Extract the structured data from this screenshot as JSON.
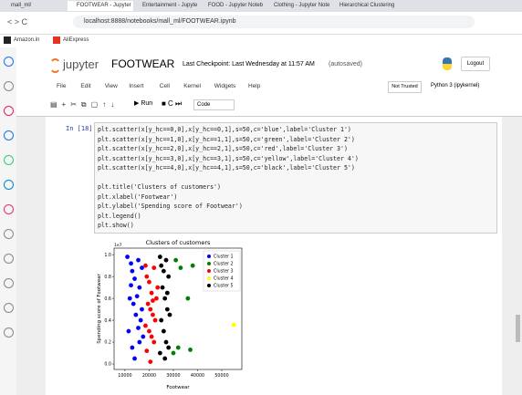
{
  "browser": {
    "tabs": [
      "mall_ml/",
      "FOOTWEAR - Jupyter N",
      "Entertainment - Jupyte",
      "FOOD - Jupyter Noteb",
      "Clothing - Jupyter Note",
      "Hierarchical Clustering"
    ],
    "url": "localhost:8888/notebooks/mall_ml/FOOTWEAR.ipynb",
    "bookmarks": [
      "Amazon.in",
      "AliExpress"
    ]
  },
  "notebook": {
    "logo": "jupyter",
    "name": "FOOTWEAR",
    "checkpoint": "Last Checkpoint: Last Wednesday at 11:57 AM",
    "autosave": "(autosaved)",
    "logout": "Logout",
    "menu": [
      "File",
      "Edit",
      "View",
      "Insert",
      "Cell",
      "Kernel",
      "Widgets",
      "Help"
    ],
    "trust": "Not Trusted",
    "kernel": "Python 3 (ipykernel)",
    "run": "Run",
    "cell_type": "Code"
  },
  "cell": {
    "prompt": "In [18]:",
    "code": [
      [
        "plt.scatter(x[y_hc==0,0],x[y_hc==0,1],s=50,c='blue',label='Cluster 1')",
        "plt.scatter(x[y_hc==1,0],x[y_hc==1,1],s=50,c='green',label='Cluster 2')",
        "plt.scatter(x[y_hc==2,0],x[y_hc==2,1],s=50,c='red',label='Cluster 3')",
        "plt.scatter(x[y_hc==3,0],x[y_hc==3,1],s=50,c='yellow',label='Cluster 4')",
        "plt.scatter(x[y_hc==4,0],x[y_hc==4,1],s=50,c='black',label='Cluster 5')"
      ],
      [
        "plt.title('Clusters of customers')",
        "plt.xlabel('Footwear')",
        "plt.ylabel('Spending score of Footwear')",
        "plt.legend()",
        "plt.show()"
      ]
    ]
  },
  "chart_data": {
    "type": "scatter",
    "title": "Clusters of customers",
    "x_label": "Footwear",
    "y_label": "Spending score of Footwear",
    "y_offset_label": "1e7",
    "xlim": [
      5500,
      58300
    ],
    "xticks": [
      10000,
      20000,
      30000,
      40000,
      50000
    ],
    "ylim": [
      -0.05,
      1.06
    ],
    "yticks": [
      {
        "value": 0,
        "label": "0.0"
      },
      0.2,
      0.4,
      0.6,
      0.8,
      {
        "value": 1,
        "label": "1.0"
      }
    ],
    "legend": "upper right",
    "series": [
      {
        "name": "Cluster 1",
        "color": "blue",
        "x": [
          11000,
          12500,
          13000,
          14000,
          15500,
          16000,
          17000,
          12000,
          13500,
          14500,
          15000,
          16500,
          11500,
          17500,
          13000,
          14000,
          15500,
          12500,
          16000,
          17000
        ],
        "values": [
          0.98,
          0.92,
          0.85,
          0.78,
          0.95,
          0.7,
          0.88,
          0.6,
          0.55,
          0.45,
          0.62,
          0.4,
          0.3,
          0.25,
          0.15,
          0.05,
          0.33,
          0.72,
          0.2,
          0.5
        ]
      },
      {
        "name": "Cluster 2",
        "color": "green",
        "x": [
          31000,
          33000,
          36000,
          38000,
          32000,
          30000,
          37000
        ],
        "values": [
          0.95,
          0.88,
          0.6,
          0.9,
          0.15,
          0.1,
          0.13
        ]
      },
      {
        "name": "Cluster 3",
        "color": "red",
        "x": [
          18500,
          19000,
          20000,
          21000,
          22000,
          23000,
          19500,
          20500,
          21500,
          22500,
          18500,
          20000,
          21000,
          23500,
          19000,
          22000,
          20500,
          21500
        ],
        "values": [
          0.9,
          0.8,
          0.75,
          0.65,
          0.88,
          0.6,
          0.55,
          0.5,
          0.45,
          0.4,
          0.35,
          0.3,
          0.25,
          0.7,
          0.12,
          0.2,
          0.02,
          0.58
        ]
      },
      {
        "name": "Cluster 4",
        "color": "yellow",
        "x": [
          55000
        ],
        "values": [
          0.36
        ]
      },
      {
        "name": "Cluster 5",
        "color": "black",
        "x": [
          24500,
          25000,
          26000,
          27000,
          28000,
          25500,
          26500,
          27500,
          28500,
          25000,
          26000,
          27000,
          28000,
          24500,
          26500,
          27500
        ],
        "values": [
          0.98,
          0.9,
          0.85,
          0.95,
          0.8,
          0.7,
          0.6,
          0.5,
          0.45,
          0.4,
          0.3,
          0.2,
          0.15,
          0.1,
          0.05,
          0.65
        ]
      }
    ]
  }
}
